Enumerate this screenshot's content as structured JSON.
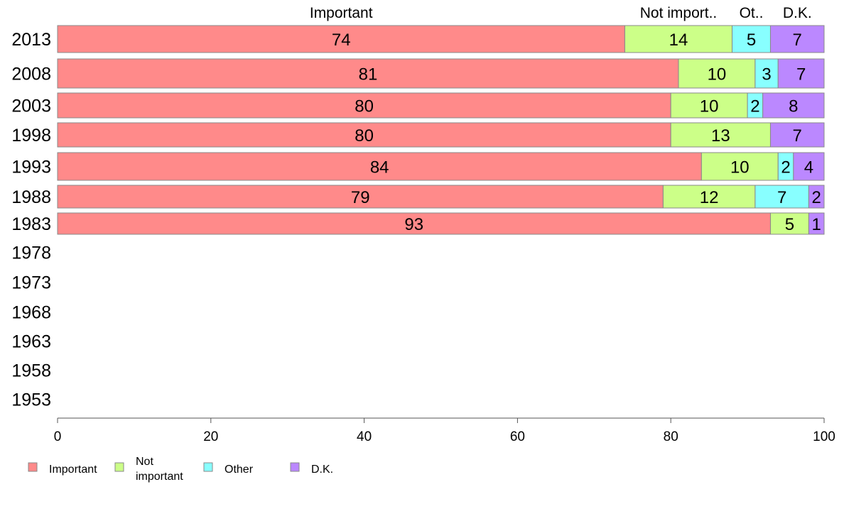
{
  "chart_data": {
    "type": "bar",
    "orientation": "horizontal",
    "stacked": true,
    "title": "",
    "xlabel": "",
    "ylabel": "",
    "xlim": [
      0,
      100
    ],
    "x_ticks": [
      0,
      20,
      40,
      60,
      80,
      100
    ],
    "categories": [
      "2013",
      "2008",
      "2003",
      "1998",
      "1993",
      "1988",
      "1983",
      "1978",
      "1973",
      "1968",
      "1963",
      "1958",
      "1953"
    ],
    "series": [
      {
        "name": "Important",
        "color": "#ff8a8a",
        "values": [
          74,
          81,
          80,
          80,
          84,
          79,
          93,
          null,
          null,
          null,
          null,
          null,
          null
        ],
        "labels": [
          "74",
          "81",
          "80",
          "80",
          "84",
          "79",
          "93",
          "",
          "",
          "",
          "",
          "",
          ""
        ]
      },
      {
        "name": "Not important",
        "color": "#ccff88",
        "values": [
          14,
          10,
          10,
          13,
          10,
          12,
          5,
          null,
          null,
          null,
          null,
          null,
          null
        ],
        "labels": [
          "14",
          "10",
          "10",
          "13",
          "10",
          "12",
          "5",
          "",
          "",
          "",
          "",
          "",
          ""
        ]
      },
      {
        "name": "Other",
        "color": "#88ffff",
        "values": [
          5,
          3,
          2,
          0,
          2,
          7,
          0,
          null,
          null,
          null,
          null,
          null,
          null
        ],
        "labels": [
          "5",
          "3",
          "2",
          "",
          "2",
          "7",
          "",
          "",
          "",
          "",
          "",
          "",
          ""
        ]
      },
      {
        "name": "D.K.",
        "color": "#bb88ff",
        "values": [
          7,
          7,
          8,
          7,
          4,
          2,
          1,
          null,
          null,
          null,
          null,
          null,
          null
        ],
        "labels": [
          "7",
          "7",
          "8",
          "7",
          "4",
          "2",
          "1",
          "",
          "",
          "",
          "",
          "",
          ""
        ]
      }
    ],
    "top_labels": [
      "Important",
      "Not import..",
      "Ot..",
      "D.K."
    ],
    "legend": {
      "position": "bottom-left",
      "items": [
        {
          "label_lines": [
            "Important"
          ],
          "color": "#ff8a8a"
        },
        {
          "label_lines": [
            "Not",
            "important"
          ],
          "color": "#ccff88"
        },
        {
          "label_lines": [
            "Other"
          ],
          "color": "#88ffff"
        },
        {
          "label_lines": [
            "D.K."
          ],
          "color": "#bb88ff"
        }
      ]
    },
    "grid": false
  }
}
